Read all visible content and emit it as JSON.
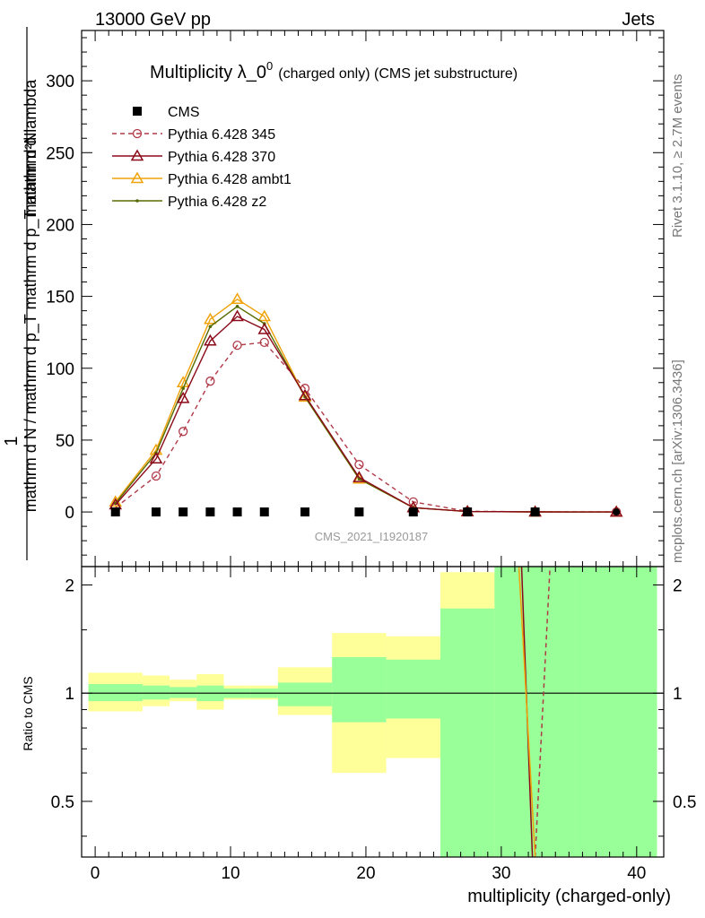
{
  "header": {
    "left": "13000 GeV pp",
    "right": "Jets"
  },
  "side": {
    "rivet": "Rivet 3.1.10, ≥ 2.7M events",
    "mcplots": "mcplots.cern.ch [arXiv:1306.3436]"
  },
  "main_ylabel": {
    "numerator": "1",
    "denominator": "mathrm d N / mathrm d p_T mathrm d p_T mathrm d lambda",
    "numerator2": "mathrm d²N"
  },
  "ratio_ylabel": "Ratio to CMS",
  "chart_data": {
    "type": "line",
    "title": "Multiplicity λ_0⁰ (charged only) (CMS jet substructure)",
    "title_main": "Multiplicity λ_0",
    "title_sup": "0",
    "title_suffix": "(charged only) (CMS jet substructure)",
    "watermark": "CMS_2021_I1920187",
    "xlabel": "multiplicity (charged-only)",
    "ylabel": "1 / mathrm d N / mathrm d p_T mathrm d p_T mathrm d lambda",
    "xlim": [
      -1,
      42
    ],
    "ylim": [
      -38,
      335
    ],
    "xticks": [
      0,
      10,
      20,
      30,
      40
    ],
    "yticks": [
      0,
      50,
      100,
      150,
      200,
      250,
      300
    ],
    "legend_position": "top-left",
    "bin_edges": [
      -0.5,
      3.5,
      5.5,
      7.5,
      9.5,
      11.5,
      13.5,
      17.5,
      21.5,
      25.5,
      29.5,
      35.5,
      41.5
    ],
    "x": [
      1.5,
      4.5,
      6.5,
      8.5,
      10.5,
      12.5,
      15.5,
      19.5,
      23.5,
      27.5,
      32.5,
      38.5
    ],
    "series": [
      {
        "name": "CMS",
        "color": "#000000",
        "marker": "square",
        "style": "none",
        "values": [
          0,
          0,
          0,
          0,
          0,
          0,
          0,
          0,
          0,
          0,
          0,
          0
        ]
      },
      {
        "name": "Pythia 6.428 345",
        "color": "#b03a48",
        "marker": "circle-open",
        "style": "dashed",
        "values": [
          3,
          25,
          56,
          91,
          116,
          118,
          86,
          33,
          7,
          0.5,
          0.1,
          0.05
        ]
      },
      {
        "name": "Pythia 6.428 370",
        "color": "#8b0a1a",
        "marker": "triangle-open",
        "style": "solid",
        "values": [
          5,
          37,
          79,
          119,
          136,
          127,
          81,
          24,
          3,
          0.3,
          0.05,
          0
        ]
      },
      {
        "name": "Pythia 6.428 ambt1",
        "color": "#f0a30a",
        "marker": "triangle-open",
        "style": "solid",
        "values": [
          7,
          43,
          90,
          134,
          148,
          136,
          80,
          23,
          3,
          0.3,
          0.05,
          0
        ]
      },
      {
        "name": "Pythia 6.428 z2",
        "color": "#556b00",
        "marker": "dot",
        "style": "solid",
        "values": [
          6,
          41,
          86,
          129,
          143,
          131,
          80,
          23,
          3,
          0.3,
          0.05,
          0
        ]
      }
    ],
    "ratio": {
      "ylabel": "Ratio to CMS",
      "ylim": [
        0.35,
        2.25
      ],
      "yticks": [
        0.5,
        1,
        2
      ],
      "log": true,
      "stat_band_green": [
        [
          0.95,
          1.06
        ],
        [
          0.96,
          1.05
        ],
        [
          0.97,
          1.04
        ],
        [
          0.95,
          1.05
        ],
        [
          0.97,
          1.03
        ],
        [
          0.97,
          1.03
        ],
        [
          0.92,
          1.07
        ],
        [
          0.83,
          1.26
        ],
        [
          0.85,
          1.24
        ],
        [
          0.34,
          1.72
        ],
        [
          0.34,
          2.5
        ],
        [
          0.34,
          2.5
        ]
      ],
      "total_band_yellow": [
        [
          0.89,
          1.14
        ],
        [
          0.92,
          1.12
        ],
        [
          0.95,
          1.09
        ],
        [
          0.9,
          1.13
        ],
        [
          0.96,
          1.05
        ],
        [
          0.96,
          1.05
        ],
        [
          0.87,
          1.18
        ],
        [
          0.6,
          1.47
        ],
        [
          0.66,
          1.44
        ],
        [
          0.34,
          2.17
        ],
        [
          0.34,
          2.5
        ],
        [
          0.34,
          2.5
        ]
      ],
      "mc_lines": [
        {
          "name": "Pythia 6.428 345",
          "color": "#b03a48",
          "style": "dashed",
          "points": [
            [
              32.5,
              0.34
            ],
            [
              33.6,
              2.25
            ]
          ]
        },
        {
          "name": "Pythia 6.428 370",
          "color": "#8b0a1a",
          "style": "solid",
          "points": [
            [
              31.5,
              2.25
            ],
            [
              32.3,
              0.34
            ]
          ]
        },
        {
          "name": "Pythia 6.428 ambt1",
          "color": "#f0a30a",
          "style": "solid",
          "points": [
            [
              31.3,
              2.25
            ],
            [
              32.5,
              0.34
            ]
          ]
        }
      ]
    }
  }
}
